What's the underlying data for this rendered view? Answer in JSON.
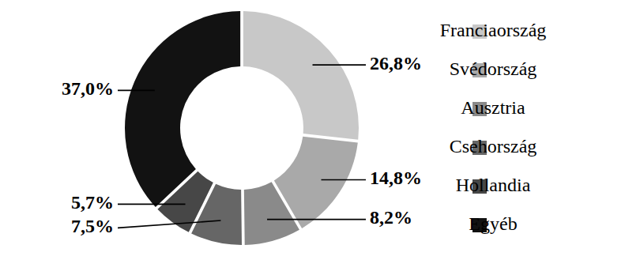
{
  "chart_data": {
    "type": "donut",
    "categories": [
      "Franciaország",
      "Svédország",
      "Ausztria",
      "Csehország",
      "Hollandia",
      "Egyéb"
    ],
    "values": [
      26.8,
      14.8,
      8.2,
      7.5,
      5.7,
      37.0
    ],
    "value_labels": [
      "26,8%",
      "14,8%",
      "8,2%",
      "7,5%",
      "5,7%",
      "37,0%"
    ],
    "colors": [
      "#c8c8c8",
      "#a9a9a9",
      "#8a8a8a",
      "#666666",
      "#474747",
      "#121212"
    ],
    "data_labels": true,
    "legend": "right"
  }
}
